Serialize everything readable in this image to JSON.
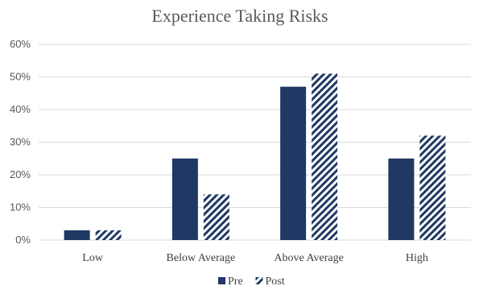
{
  "chart_data": {
    "type": "bar",
    "title": "Experience Taking Risks",
    "categories": [
      "Low",
      "Below Average",
      "Above Average",
      "High"
    ],
    "series": [
      {
        "name": "Pre",
        "values": [
          3,
          25,
          47,
          25
        ],
        "style": "solid"
      },
      {
        "name": "Post",
        "values": [
          3,
          14,
          51,
          32
        ],
        "style": "diagonal-stripes"
      }
    ],
    "ylim": [
      0,
      60
    ],
    "yticks": [
      "0%",
      "10%",
      "20%",
      "30%",
      "40%",
      "50%",
      "60%"
    ],
    "value_unit": "percent",
    "grid": true,
    "legend_position": "bottom",
    "colors": {
      "series": "#203864",
      "grid": "#d9d9d9",
      "text": "#595959"
    }
  }
}
